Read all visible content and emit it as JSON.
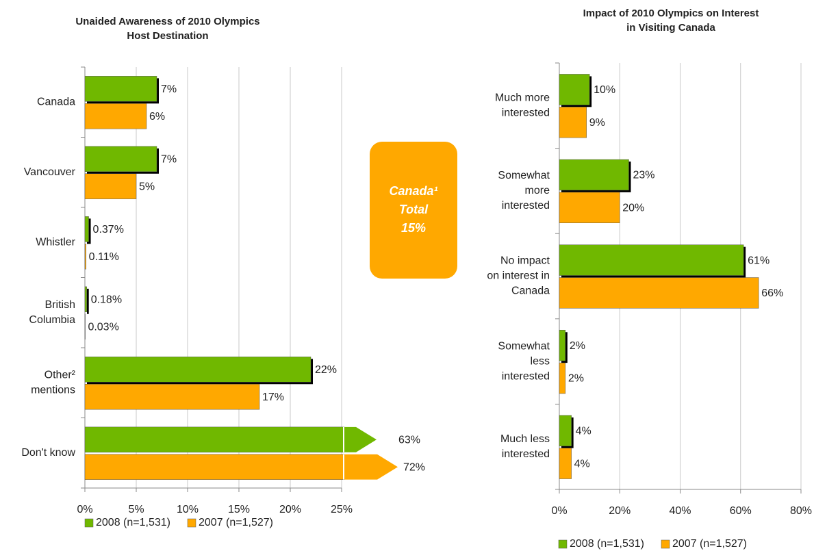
{
  "chart_data": [
    {
      "type": "bar",
      "orientation": "horizontal",
      "title": [
        "Unaided Awareness of 2010 Olympics",
        "Host Destination"
      ],
      "categories": [
        [
          "Canada"
        ],
        [
          "Vancouver"
        ],
        [
          "Whistler"
        ],
        [
          "British",
          "Columbia"
        ],
        [
          "Other²",
          "mentions"
        ],
        [
          "Don't know"
        ]
      ],
      "series": [
        {
          "name": "2008 (n=1,531)",
          "color": "#70b800",
          "values": [
            7,
            7,
            0.37,
            0.18,
            22,
            63
          ],
          "value_labels": [
            "7%",
            "7%",
            "0.37%",
            "0.18%",
            "22%",
            "63%"
          ]
        },
        {
          "name": "2007 (n=1,527)",
          "color": "#ffa800",
          "values": [
            6,
            5,
            0.11,
            0.03,
            17,
            72
          ],
          "value_labels": [
            "6%",
            "5%",
            "0.11%",
            "0.03%",
            "17%",
            "72%"
          ]
        }
      ],
      "xlim": [
        0,
        25
      ],
      "xticks": [
        {
          "value": 0,
          "label": "0%"
        },
        {
          "value": 5,
          "label": "5%"
        },
        {
          "value": 10,
          "label": "10%"
        },
        {
          "value": 15,
          "label": "15%"
        },
        {
          "value": 20,
          "label": "20%"
        },
        {
          "value": 25,
          "label": "25%"
        }
      ],
      "grid": true,
      "legend": "bottom",
      "annotation": [
        "Canada¹",
        "Total",
        "15%"
      ]
    },
    {
      "type": "bar",
      "orientation": "horizontal",
      "title": [
        "Impact of 2010 Olympics on Interest",
        "in Visiting Canada"
      ],
      "categories": [
        [
          "Much more",
          "interested"
        ],
        [
          "Somewhat",
          "more",
          "interested"
        ],
        [
          "No impact",
          "on interest in",
          "Canada"
        ],
        [
          "Somewhat",
          "less",
          "interested"
        ],
        [
          "Much less",
          "interested"
        ]
      ],
      "series": [
        {
          "name": "2008 (n=1,531)",
          "color": "#70b800",
          "values": [
            10,
            23,
            61,
            2,
            4
          ],
          "value_labels": [
            "10%",
            "23%",
            "61%",
            "2%",
            "4%"
          ]
        },
        {
          "name": "2007 (n=1,527)",
          "color": "#ffa800",
          "values": [
            9,
            20,
            66,
            2,
            4
          ],
          "value_labels": [
            "9%",
            "20%",
            "66%",
            "2%",
            "4%"
          ]
        }
      ],
      "xlim": [
        0,
        80
      ],
      "xticks": [
        {
          "value": 0,
          "label": "0%"
        },
        {
          "value": 20,
          "label": "20%"
        },
        {
          "value": 40,
          "label": "40%"
        },
        {
          "value": 60,
          "label": "60%"
        },
        {
          "value": 80,
          "label": "80%"
        }
      ],
      "grid": true,
      "legend": "bottom"
    }
  ]
}
